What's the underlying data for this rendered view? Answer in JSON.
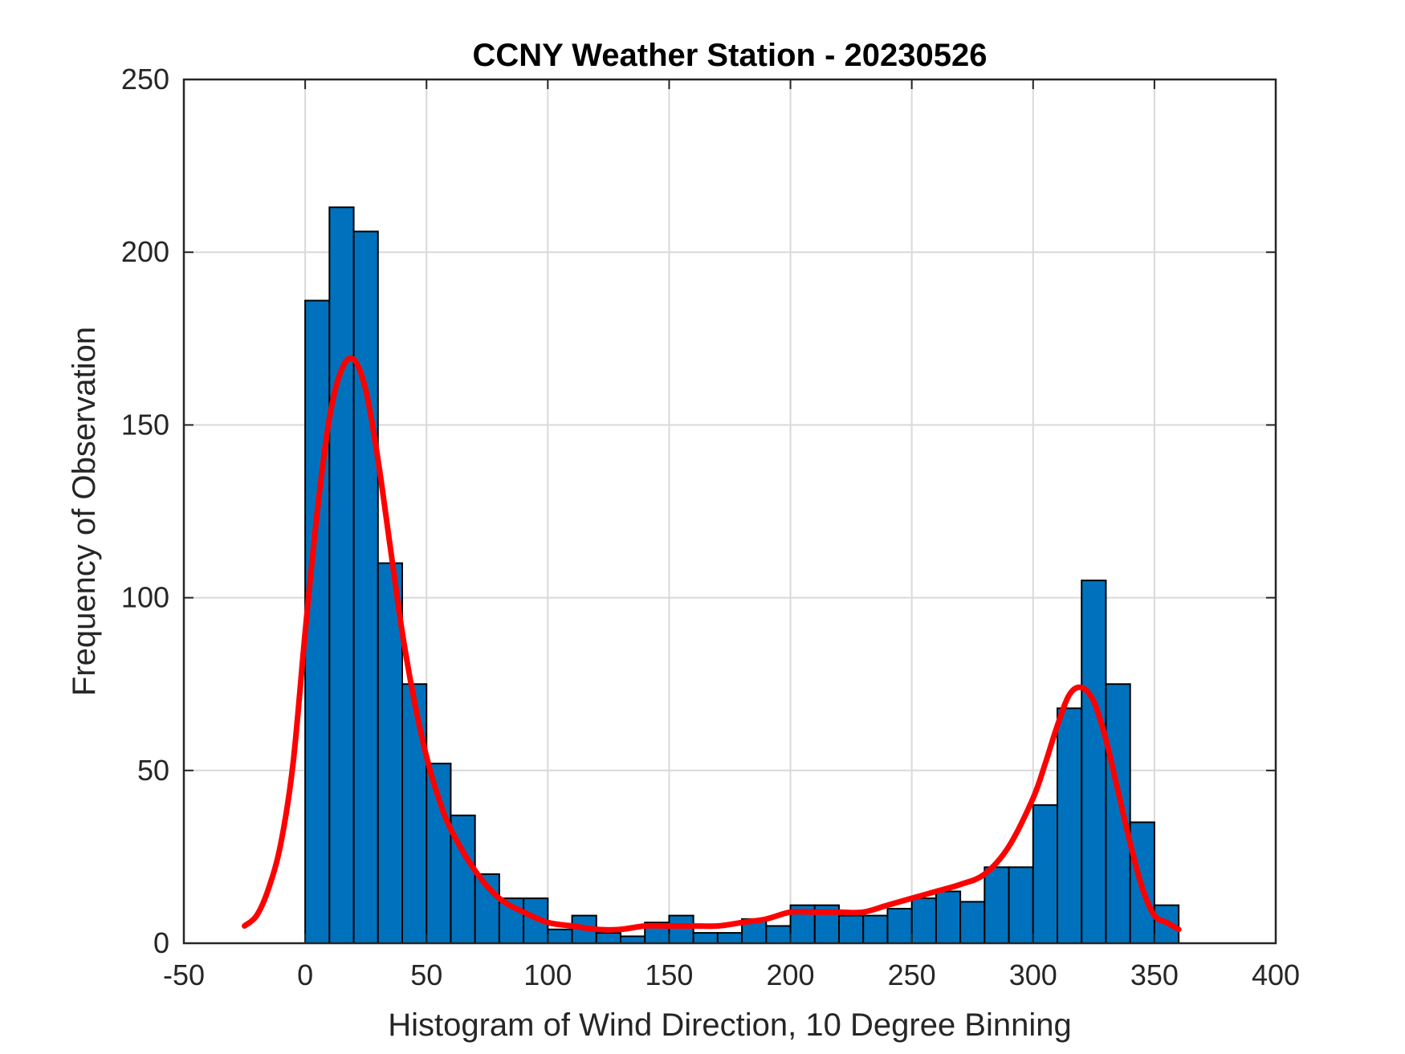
{
  "chart_data": {
    "type": "bar",
    "title": "CCNY Weather Station - 20230526",
    "xlabel": "Histogram of Wind Direction, 10 Degree Binning",
    "ylabel": "Frequency of Observation",
    "xlim": [
      -50,
      400
    ],
    "ylim": [
      0,
      250
    ],
    "xticks": [
      -50,
      0,
      50,
      100,
      150,
      200,
      250,
      300,
      350,
      400
    ],
    "yticks": [
      0,
      50,
      100,
      150,
      200,
      250
    ],
    "grid": true,
    "bins": {
      "start": 0,
      "width": 10,
      "counts": [
        186,
        213,
        206,
        110,
        75,
        52,
        37,
        20,
        13,
        13,
        4,
        8,
        3,
        2,
        6,
        8,
        3,
        3,
        7,
        5,
        11,
        11,
        8,
        8,
        10,
        13,
        15,
        12,
        22,
        22,
        40,
        68,
        105,
        75,
        35,
        11
      ]
    },
    "fit_curve": {
      "name": "density fit",
      "color": "#ff0000",
      "x": [
        -25,
        -20,
        -15,
        -10,
        -5,
        0,
        5,
        10,
        15,
        20,
        25,
        30,
        35,
        40,
        45,
        50,
        55,
        60,
        70,
        80,
        90,
        100,
        110,
        120,
        130,
        140,
        150,
        160,
        170,
        180,
        190,
        200,
        210,
        220,
        230,
        240,
        250,
        260,
        270,
        280,
        290,
        300,
        305,
        310,
        315,
        320,
        325,
        330,
        335,
        340,
        345,
        350,
        355,
        360
      ],
      "y": [
        5,
        8,
        16,
        29,
        52,
        90,
        125,
        152,
        166,
        169,
        160,
        140,
        115,
        90,
        70,
        54,
        42,
        33,
        21,
        13,
        9,
        6,
        5,
        4,
        4,
        5,
        5,
        5,
        5,
        6,
        7,
        9,
        9,
        9,
        9,
        11,
        13,
        15,
        17,
        20,
        28,
        42,
        52,
        63,
        72,
        74,
        70,
        59,
        44,
        29,
        16,
        8,
        6,
        4
      ]
    },
    "colors": {
      "bar_fill": "#0072bd",
      "bar_edge": "#000000",
      "curve": "#ff0000",
      "grid": "#d9d9d9",
      "axes": "#262626"
    }
  }
}
